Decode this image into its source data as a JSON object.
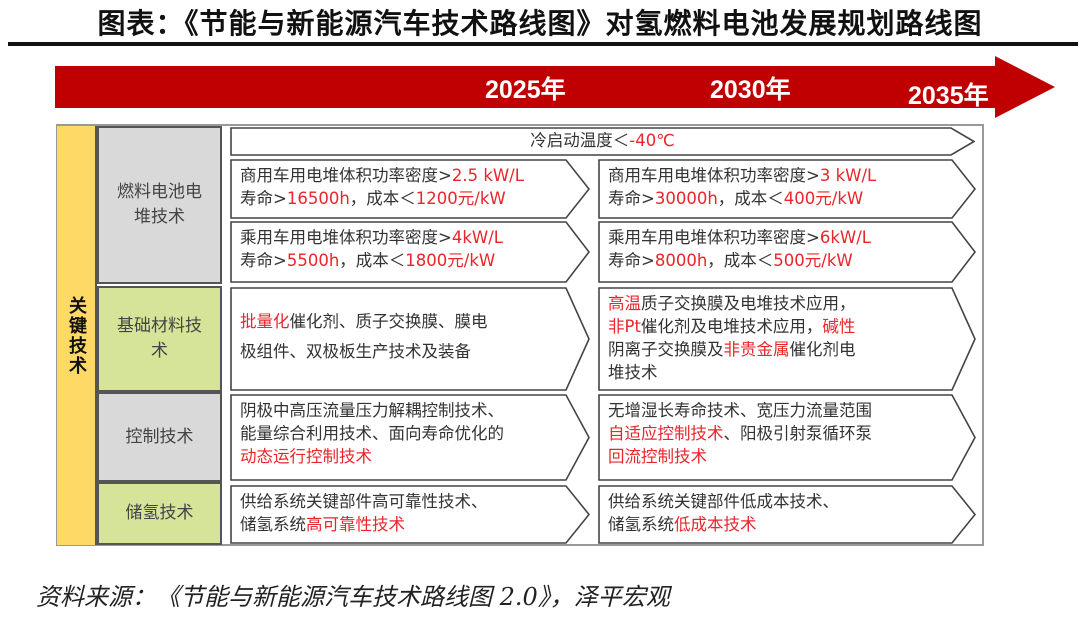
{
  "title": "图表：《节能与新能源汽车技术路线图》对氢燃料电池发展规划路线图",
  "timeline": {
    "color": "#c00000",
    "years": [
      "2025年",
      "2030年",
      "2035年"
    ]
  },
  "key_tech_label": "关键技术",
  "categories": [
    {
      "label": "燃料电池电堆技术",
      "color": "#d9d9d9"
    },
    {
      "label": "基础材料技术",
      "color": "#d6e49a"
    },
    {
      "label": "控制技术",
      "color": "#d9d9d9"
    },
    {
      "label": "储氢技术",
      "color": "#d6e49a"
    }
  ],
  "highlight_color": "#e8262b",
  "cells": [
    {
      "id": "cold-start",
      "segments": [
        {
          "t": "冷启动温度＜",
          "red": false
        },
        {
          "t": "-40℃",
          "red": true
        }
      ]
    },
    {
      "id": "commercial-2025",
      "segments": [
        {
          "t": "商用车用电堆体积功率密度>",
          "red": false
        },
        {
          "t": "2.5 kW/L",
          "red": true
        },
        {
          "t": "\n寿命>",
          "red": false
        },
        {
          "t": "16500h",
          "red": true
        },
        {
          "t": "，成本＜",
          "red": false
        },
        {
          "t": "1200元/kW",
          "red": true
        }
      ]
    },
    {
      "id": "commercial-2030",
      "segments": [
        {
          "t": "商用车用电堆体积功率密度>",
          "red": false
        },
        {
          "t": "3 kW/L",
          "red": true
        },
        {
          "t": "\n寿命>",
          "red": false
        },
        {
          "t": "30000h",
          "red": true
        },
        {
          "t": "，成本＜",
          "red": false
        },
        {
          "t": "400元/kW",
          "red": true
        }
      ]
    },
    {
      "id": "passenger-2025",
      "segments": [
        {
          "t": "乘用车用电堆体积功率密度>",
          "red": false
        },
        {
          "t": "4kW/L",
          "red": true
        },
        {
          "t": "\n寿命>",
          "red": false
        },
        {
          "t": "5500h",
          "red": true
        },
        {
          "t": "，成本＜",
          "red": false
        },
        {
          "t": "1800元/kW",
          "red": true
        }
      ]
    },
    {
      "id": "passenger-2030",
      "segments": [
        {
          "t": "乘用车用电堆体积功率密度>",
          "red": false
        },
        {
          "t": "6kW/L",
          "red": true
        },
        {
          "t": "\n寿命>",
          "red": false
        },
        {
          "t": "8000h",
          "red": true
        },
        {
          "t": "，成本＜",
          "red": false
        },
        {
          "t": "500元/kW",
          "red": true
        }
      ]
    },
    {
      "id": "materials-2025",
      "segments": [
        {
          "t": "批量化",
          "red": true
        },
        {
          "t": "催化剂、质子交换膜、膜电\n极组件、双极板生产技术及装备",
          "red": false
        }
      ]
    },
    {
      "id": "materials-2030",
      "segments": [
        {
          "t": "高温",
          "red": true
        },
        {
          "t": "质子交换膜及电堆技术应用，\n",
          "red": false
        },
        {
          "t": "非Pt",
          "red": true
        },
        {
          "t": "催化剂及电堆技术应用，",
          "red": false
        },
        {
          "t": "碱性",
          "red": true
        },
        {
          "t": "\n阴离子交换膜及",
          "red": false
        },
        {
          "t": "非贵金属",
          "red": true
        },
        {
          "t": "催化剂电\n堆技术",
          "red": false
        }
      ]
    },
    {
      "id": "control-2025",
      "segments": [
        {
          "t": "阴极中高压流量压力解耦控制技术、\n能量综合利用技术、面向寿命优化的\n",
          "red": false
        },
        {
          "t": "动态运行控制技术",
          "red": true
        }
      ]
    },
    {
      "id": "control-2030",
      "segments": [
        {
          "t": "无增湿长寿命技术、宽压力流量范围\n",
          "red": false
        },
        {
          "t": "自适应控制技术",
          "red": true
        },
        {
          "t": "、阳极引射泵循环泵\n",
          "red": false
        },
        {
          "t": "回流控制技术",
          "red": true
        }
      ]
    },
    {
      "id": "storage-2025",
      "segments": [
        {
          "t": "供给系统关键部件高可靠性技术、\n储氢系统",
          "red": false
        },
        {
          "t": "高可靠性技术",
          "red": true
        }
      ]
    },
    {
      "id": "storage-2030",
      "segments": [
        {
          "t": "供给系统关键部件低成本技术、\n储氢系统",
          "red": false
        },
        {
          "t": "低成本技术",
          "red": true
        }
      ]
    }
  ],
  "source": "资料来源：《节能与新能源汽车技术路线图 2.0》，泽平宏观"
}
